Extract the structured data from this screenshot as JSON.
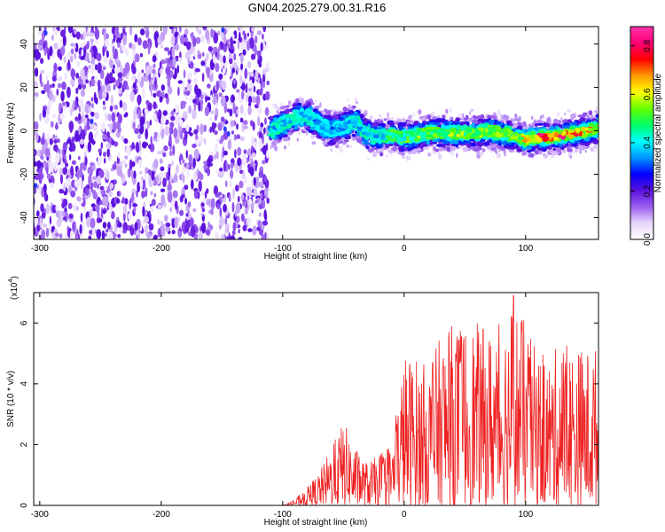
{
  "title": "GN04.2025.279.00.31.R16",
  "chart_data": [
    {
      "type": "heatmap",
      "xlabel": "Height of straight line (km)",
      "ylabel": "Frequency (Hz)",
      "xlim": [
        -305,
        160
      ],
      "ylim": [
        -50,
        48
      ],
      "xticks": [
        -300,
        -200,
        -100,
        0,
        100
      ],
      "yticks": [
        -40,
        -20,
        0,
        20,
        40
      ],
      "colorbar": {
        "label": "Normalized spectral amplitude",
        "range": [
          0,
          0.88
        ],
        "ticks": [
          0.0,
          0.2,
          0.4,
          0.6,
          0.8
        ],
        "colormap": [
          "#ffffff",
          "#e8d6fb",
          "#9a5ef0",
          "#5a0fdc",
          "#0000ff",
          "#0099ff",
          "#00ffff",
          "#00ff66",
          "#66ff00",
          "#ffff00",
          "#ff9900",
          "#ff0000",
          "#ff0077",
          "#ff33aa"
        ]
      },
      "signal_track": {
        "x": [
          -110,
          -100,
          -90,
          -80,
          -70,
          -60,
          -50,
          -40,
          -30,
          -20,
          -10,
          0,
          10,
          20,
          30,
          40,
          50,
          60,
          70,
          80,
          90,
          100,
          110,
          120,
          130,
          140,
          150,
          160
        ],
        "frequency": [
          0,
          3,
          6,
          7,
          3,
          0,
          2,
          4,
          -2,
          -3,
          -2,
          -3,
          -2,
          -1,
          -1,
          -1,
          -1,
          -1,
          0,
          -1,
          -2,
          -4,
          -3,
          -3,
          -2,
          -1,
          0,
          1
        ],
        "peak_amplitude": [
          0.45,
          0.45,
          0.45,
          0.45,
          0.4,
          0.4,
          0.4,
          0.45,
          0.45,
          0.45,
          0.55,
          0.55,
          0.6,
          0.55,
          0.6,
          0.6,
          0.6,
          0.6,
          0.6,
          0.6,
          0.6,
          0.7,
          0.85,
          0.85,
          0.85,
          0.8,
          0.75,
          0.7
        ]
      },
      "noise_region": {
        "x_range": [
          -305,
          -112
        ],
        "amplitude": 0.12
      }
    },
    {
      "type": "line",
      "xlabel": "Height of straight line (km)",
      "ylabel": "SNR (10 * v/v)",
      "yscale_label": "(x10",
      "yscale_exponent": "4",
      "xlim": [
        -305,
        160
      ],
      "ylim": [
        0,
        7
      ],
      "xticks": [
        -300,
        -200,
        -100,
        0,
        100
      ],
      "yticks": [
        0,
        2,
        4,
        6
      ],
      "color": "#ee2222",
      "envelope": {
        "x": [
          -305,
          -100,
          -90,
          -80,
          -70,
          -60,
          -50,
          -40,
          -30,
          -20,
          -10,
          0,
          10,
          20,
          30,
          40,
          50,
          60,
          70,
          80,
          90,
          100,
          110,
          120,
          130,
          140,
          150,
          160
        ],
        "y": [
          0,
          0,
          0.2,
          0.6,
          1.1,
          1.9,
          2.8,
          1.9,
          1.4,
          1.7,
          2.0,
          5.0,
          4.9,
          4.6,
          5.6,
          6.0,
          6.1,
          6.0,
          5.8,
          6.0,
          6.9,
          6.0,
          5.0,
          4.9,
          5.5,
          5.3,
          5.2,
          5.3
        ]
      },
      "peak_y": 6.9,
      "peak_x": 90
    }
  ]
}
